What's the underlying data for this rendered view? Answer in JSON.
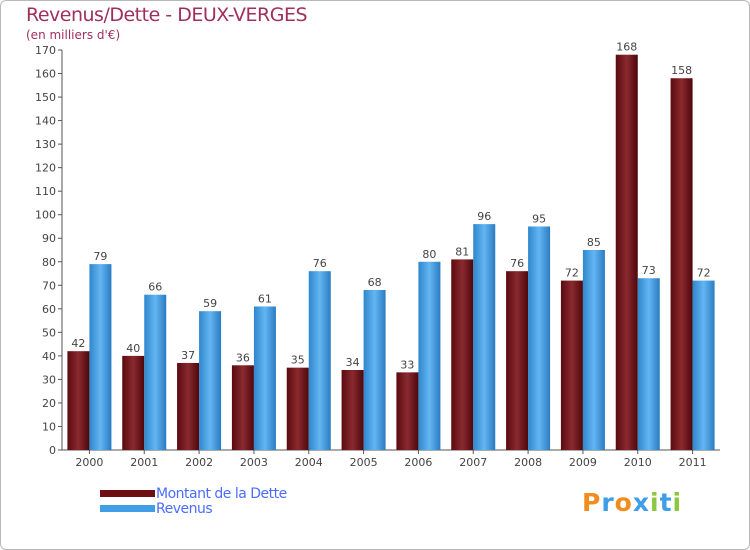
{
  "header": {
    "title": "Revenus/Dette - DEUX-VERGES",
    "subtitle": "(en milliers d'€)"
  },
  "colors": {
    "dette": "#6e0f14",
    "revenus": "#3f9ee6"
  },
  "brand": {
    "text": "Proxiti",
    "letters": [
      {
        "ch": "P",
        "color": "#f28c1e"
      },
      {
        "ch": "r",
        "color": "#3f9ee6"
      },
      {
        "ch": "o",
        "color": "#f28c1e"
      },
      {
        "ch": "x",
        "color": "#3f9ee6"
      },
      {
        "ch": "i",
        "color": "#8dc63f"
      },
      {
        "ch": "t",
        "color": "#3f9ee6"
      },
      {
        "ch": "i",
        "color": "#8dc63f"
      }
    ]
  },
  "chart_data": {
    "type": "bar",
    "title": "Revenus/Dette - DEUX-VERGES",
    "subtitle": "(en milliers d'€)",
    "categories": [
      "2000",
      "2001",
      "2002",
      "2003",
      "2004",
      "2005",
      "2006",
      "2007",
      "2008",
      "2009",
      "2010",
      "2011"
    ],
    "series": [
      {
        "name": "Montant de la Dette",
        "values": [
          42,
          40,
          37,
          36,
          35,
          34,
          33,
          81,
          76,
          72,
          168,
          158
        ]
      },
      {
        "name": "Revenus",
        "values": [
          79,
          66,
          59,
          61,
          76,
          68,
          80,
          96,
          95,
          85,
          73,
          72
        ]
      }
    ],
    "ylim": [
      0,
      170
    ],
    "ytick_step": 10,
    "grid": false,
    "legend_position": "bottom-left",
    "show_data_labels": true
  }
}
